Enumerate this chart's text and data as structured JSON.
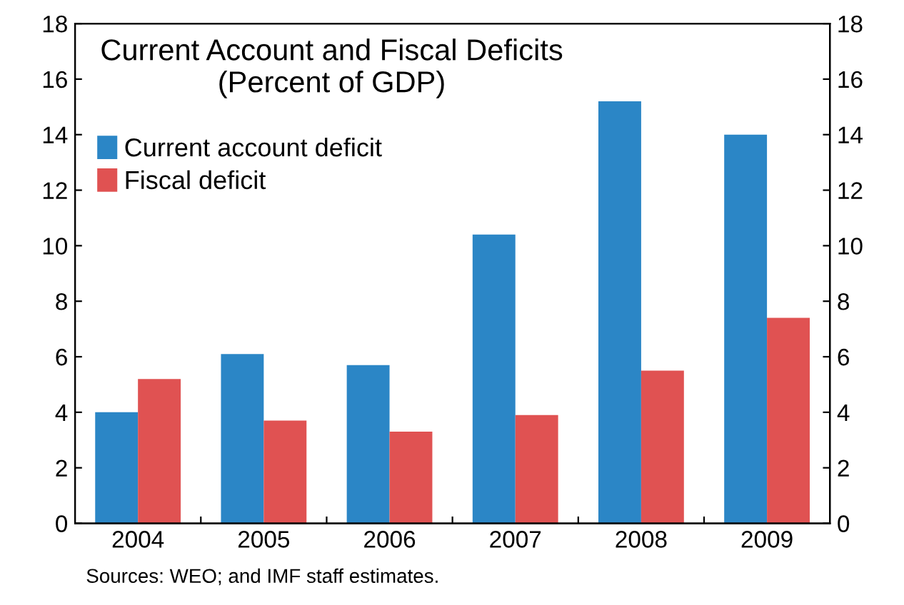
{
  "chart_data": {
    "type": "bar",
    "title": "Current Account and Fiscal Deficits\n(Percent of GDP)",
    "categories": [
      "2004",
      "2005",
      "2006",
      "2007",
      "2008",
      "2009"
    ],
    "series": [
      {
        "name": "Current account deficit",
        "color": "#2b86c6",
        "values": [
          4.0,
          6.1,
          5.7,
          10.4,
          15.2,
          14.0
        ]
      },
      {
        "name": "Fiscal deficit",
        "color": "#e05252",
        "values": [
          5.2,
          3.7,
          3.3,
          3.9,
          5.5,
          7.4
        ]
      }
    ],
    "ylim": [
      0,
      18
    ],
    "yticks": [
      0,
      2,
      4,
      6,
      8,
      10,
      12,
      14,
      16,
      18
    ],
    "y2lim": [
      0,
      18
    ],
    "y2ticks": [
      0,
      2,
      4,
      6,
      8,
      10,
      12,
      14,
      16,
      18
    ],
    "grid": false,
    "legend": "top left",
    "annotations": [
      "Sources: WEO; and IMF staff estimates."
    ]
  }
}
